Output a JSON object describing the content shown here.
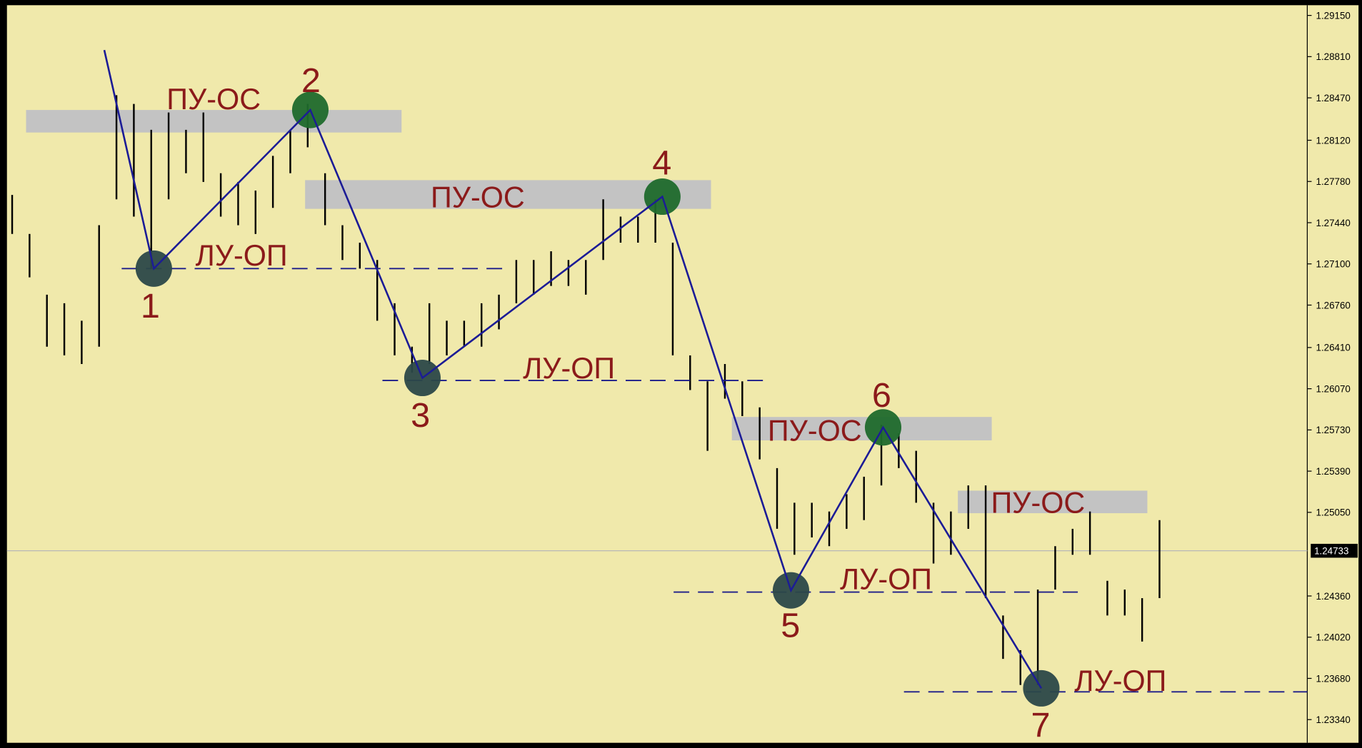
{
  "chart_data": {
    "type": "ohlc",
    "background": "#f0e9ab",
    "bar_color": "#000000",
    "xlim": [
      0,
      74.5
    ],
    "ylim": [
      1.2312,
      1.2922
    ],
    "yticks": [
      {
        "value": 1.2915,
        "label": "1.29150"
      },
      {
        "value": 1.2881,
        "label": "1.28810"
      },
      {
        "value": 1.2847,
        "label": "1.28470"
      },
      {
        "value": 1.2812,
        "label": "1.28120"
      },
      {
        "value": 1.2778,
        "label": "1.27780"
      },
      {
        "value": 1.2744,
        "label": "1.27440"
      },
      {
        "value": 1.271,
        "label": "1.27100"
      },
      {
        "value": 1.2676,
        "label": "1.26760"
      },
      {
        "value": 1.2641,
        "label": "1.26410"
      },
      {
        "value": 1.2607,
        "label": "1.26070"
      },
      {
        "value": 1.2573,
        "label": "1.25730"
      },
      {
        "value": 1.2539,
        "label": "1.25390"
      },
      {
        "value": 1.2505,
        "label": "1.25050"
      },
      {
        "value": 1.2436,
        "label": "1.24360"
      },
      {
        "value": 1.2402,
        "label": "1.24020"
      },
      {
        "value": 1.2368,
        "label": "1.23680"
      },
      {
        "value": 1.2334,
        "label": "1.23340"
      }
    ],
    "current_price": {
      "value": 1.24733,
      "label": "1.24733"
    },
    "bars": {
      "high": [
        1.27669,
        1.27347,
        1.26846,
        1.26775,
        1.26631,
        1.27419,
        1.28492,
        1.2842,
        1.28206,
        1.28349,
        1.28206,
        1.28349,
        1.27848,
        1.27776,
        1.27705,
        1.27991,
        1.28206,
        1.2842,
        1.27848,
        1.27419,
        1.27275,
        1.27132,
        1.26775,
        1.26417,
        1.26775,
        1.26631,
        1.26631,
        1.26775,
        1.26846,
        1.27132,
        1.27132,
        1.27204,
        1.27132,
        1.27132,
        1.27633,
        1.2749,
        1.2749,
        1.27633,
        1.27275,
        1.26345,
        1.26131,
        1.26274,
        1.26131,
        1.25916,
        1.25415,
        1.25129,
        1.25129,
        1.25057,
        1.252,
        1.25344,
        1.25773,
        1.25701,
        1.25558,
        1.25129,
        1.25057,
        1.25272,
        1.25272,
        1.24199,
        1.23913,
        1.24413,
        1.24771,
        1.24914,
        1.25057,
        1.24485,
        1.24413,
        1.24342,
        1.24986
      ],
      "low": [
        1.27347,
        1.26989,
        1.26417,
        1.26345,
        1.26274,
        1.26417,
        1.27633,
        1.2749,
        1.27061,
        1.27633,
        1.27848,
        1.27776,
        1.2749,
        1.27419,
        1.27347,
        1.27562,
        1.27848,
        1.28062,
        1.27419,
        1.27132,
        1.27061,
        1.26631,
        1.26345,
        1.26202,
        1.26274,
        1.26345,
        1.26417,
        1.26417,
        1.2656,
        1.26775,
        1.26846,
        1.26918,
        1.26918,
        1.26846,
        1.27132,
        1.27275,
        1.27275,
        1.27275,
        1.26345,
        1.26059,
        1.25558,
        1.25988,
        1.25844,
        1.25487,
        1.24914,
        1.247,
        1.24843,
        1.24771,
        1.24914,
        1.24986,
        1.25272,
        1.25415,
        1.25129,
        1.24628,
        1.247,
        1.24914,
        1.24342,
        1.23841,
        1.23626,
        1.23626,
        1.24413,
        1.247,
        1.247,
        1.24199,
        1.24199,
        1.23984,
        1.24342
      ]
    },
    "zigzag": {
      "color": "#1c1c96",
      "x": [
        5.3,
        8.15,
        17.15,
        23.6,
        37.4,
        44.8,
        50.1,
        59.2
      ],
      "values": [
        1.28864,
        1.27061,
        1.2837,
        1.26159,
        1.27655,
        1.24406,
        1.25751,
        1.23598
      ],
      "labels": [
        null,
        "1",
        "2",
        "3",
        "4",
        "5",
        "6",
        "7"
      ],
      "colors": [
        null,
        "#2b4848",
        "#1f6a2c",
        "#2b4848",
        "#1f6a2c",
        "#2b4848",
        "#1f6a2c",
        "#2b4848"
      ]
    },
    "zones": [
      {
        "label": "ПУ-ОС",
        "x": [
          0.8,
          22.4
        ],
        "y": [
          1.28184,
          1.2837
        ]
      },
      {
        "label": "ПУ-ОС",
        "x": [
          16.85,
          40.2
        ],
        "y": [
          1.27554,
          1.27791
        ]
      },
      {
        "label": "ПУ-ОС",
        "x": [
          41.4,
          56.35
        ],
        "y": [
          1.25644,
          1.25837
        ]
      },
      {
        "label": "ПУ-ОС",
        "x": [
          54.4,
          65.3
        ],
        "y": [
          1.25043,
          1.25229
        ]
      }
    ],
    "zone_color": "#c3c3c3",
    "levels": [
      {
        "label": "ЛУ-ОП",
        "x": [
          6.3,
          28.2
        ],
        "value": 1.27061
      },
      {
        "label": "ЛУ-ОП",
        "x": [
          21.3,
          43.3
        ],
        "value": 1.26138
      },
      {
        "label": "ЛУ-ОП",
        "x": [
          38.05,
          61.3
        ],
        "value": 1.24392
      },
      {
        "label": "ЛУ-ОП",
        "x": [
          51.3,
          74.5
        ],
        "value": 1.23569
      }
    ],
    "level_color": "#1c1c8a",
    "label_color": "#8b1a1a"
  }
}
